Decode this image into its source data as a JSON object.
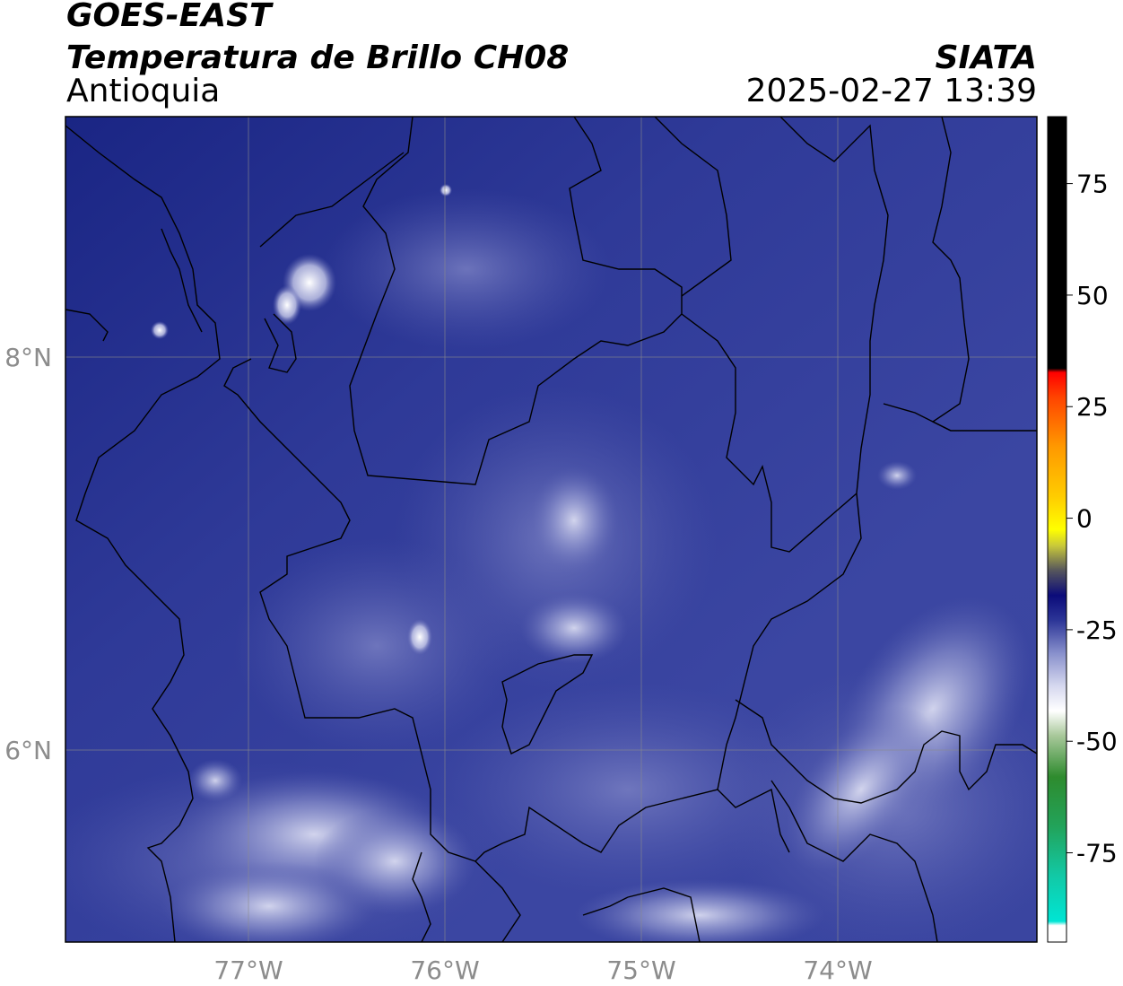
{
  "header": {
    "satellite": "GOES-EAST",
    "product": "Temperatura de Brillo CH08",
    "region": "Antioquia",
    "agency": "SIATA",
    "timestamp": "2025-02-27 13:39"
  },
  "axes": {
    "longitude_ticks": [
      "77°W",
      "76°W",
      "75°W",
      "74°W"
    ],
    "latitude_ticks": [
      "8°N",
      "6°N"
    ],
    "grid": true
  },
  "colorbar": {
    "ticks": [
      "75",
      "50",
      "25",
      "0",
      "-25",
      "-50",
      "-75"
    ],
    "range": [
      -95,
      90
    ],
    "colors": {
      "warm": "#000000",
      "red": "#ff0000",
      "orange": "#ff9900",
      "yellow": "#ffff00",
      "navy": "#0b0b7a",
      "white": "#ffffff",
      "green": "#2e8b2e",
      "cyan": "#00e5d4"
    }
  },
  "colors": {
    "background": "#2d3490",
    "cloud_light": "#c8cbea",
    "borders": "#000000"
  }
}
